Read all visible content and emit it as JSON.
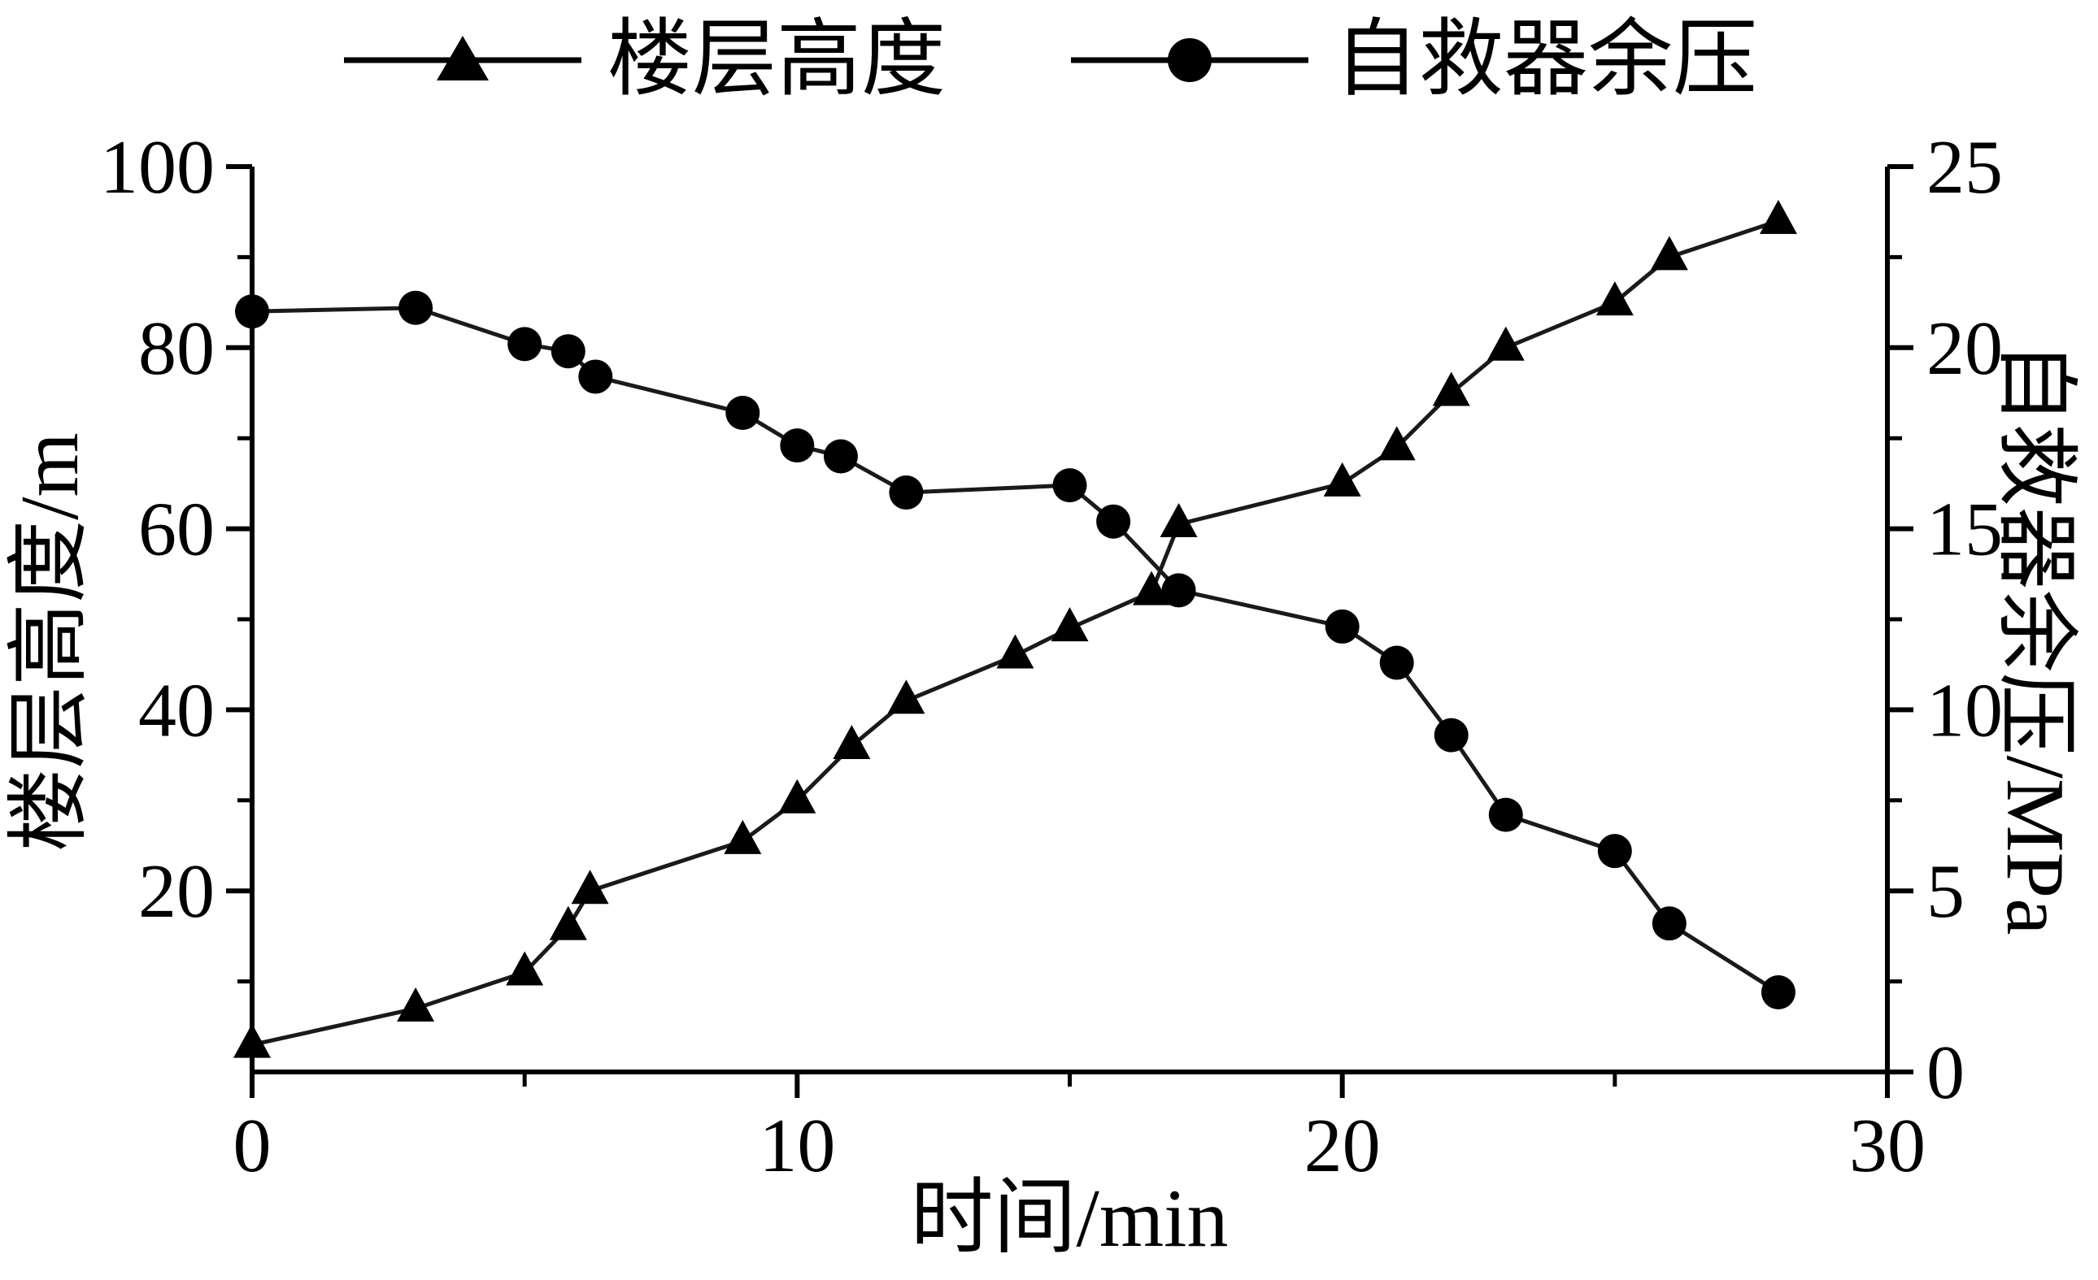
{
  "chart_data": {
    "type": "line",
    "title": "",
    "xlabel": "时间/min",
    "ylabel_left": "楼层高度/m",
    "ylabel_right": "自救器余压/MPa",
    "xlim": [
      0,
      30
    ],
    "ylim_left": [
      0,
      100
    ],
    "ylim_right": [
      0,
      25
    ],
    "x_ticks": [
      0,
      10,
      20,
      30
    ],
    "x_minor_ticks": [
      5,
      15,
      25
    ],
    "y_left_ticks": [
      20,
      40,
      60,
      80,
      100
    ],
    "y_left_minor_ticks": [
      10,
      30,
      50,
      70,
      90
    ],
    "y_right_ticks": [
      0,
      5,
      10,
      15,
      20,
      25
    ],
    "y_right_minor_ticks": [
      2.5,
      7.5,
      12.5,
      17.5,
      22.5
    ],
    "grid": false,
    "legend_position": "top",
    "ink_color": "#000000",
    "line_color": "#1a1a1a",
    "series": [
      {
        "name": "自救器余压",
        "axis": "right",
        "marker": "circle",
        "points": [
          [
            0,
            21.0
          ],
          [
            3,
            21.1
          ],
          [
            5,
            20.1
          ],
          [
            5.8,
            19.9
          ],
          [
            6.3,
            19.2
          ],
          [
            9,
            18.2
          ],
          [
            10,
            17.3
          ],
          [
            10.8,
            17.0
          ],
          [
            12,
            16.0
          ],
          [
            15,
            16.2
          ],
          [
            15.8,
            15.2
          ],
          [
            17,
            13.3
          ],
          [
            20,
            12.3
          ],
          [
            21,
            11.3
          ],
          [
            22,
            9.3
          ],
          [
            23,
            7.1
          ],
          [
            25,
            6.1
          ],
          [
            26,
            4.1
          ],
          [
            28,
            2.2
          ]
        ]
      },
      {
        "name": "楼层高度",
        "axis": "left",
        "marker": "triangle",
        "points": [
          [
            0,
            3
          ],
          [
            3,
            7
          ],
          [
            5,
            11
          ],
          [
            5.8,
            16
          ],
          [
            6.2,
            20
          ],
          [
            9,
            25.5
          ],
          [
            10,
            30
          ],
          [
            11,
            36
          ],
          [
            12,
            41
          ],
          [
            14,
            46
          ],
          [
            15,
            49
          ],
          [
            16.5,
            53
          ],
          [
            17,
            60.5
          ],
          [
            20,
            65
          ],
          [
            21,
            69
          ],
          [
            22,
            75
          ],
          [
            23,
            80
          ],
          [
            25,
            85
          ],
          [
            26,
            90
          ],
          [
            28,
            94
          ]
        ]
      }
    ]
  }
}
